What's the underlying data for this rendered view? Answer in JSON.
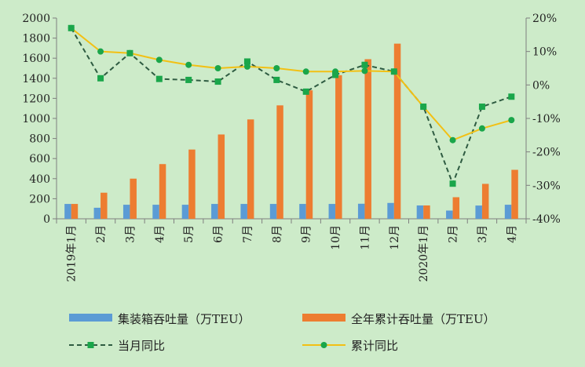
{
  "chart_data": {
    "type": "bar",
    "categories": [
      "2019年1月",
      "2月",
      "3月",
      "4月",
      "5月",
      "6月",
      "7月",
      "8月",
      "9月",
      "10月",
      "11月",
      "12月",
      "2020年1月",
      "2月",
      "3月",
      "4月"
    ],
    "series": [
      {
        "name": "集装箱吞吐量（万TEU）",
        "type": "bar",
        "axis": "left",
        "color": "#5b9bd5",
        "values": [
          148,
          110,
          140,
          140,
          140,
          148,
          148,
          148,
          148,
          148,
          150,
          158,
          133,
          82,
          132,
          140
        ]
      },
      {
        "name": "全年累计吞吐量（万TEU）",
        "type": "bar",
        "axis": "left",
        "color": "#ed7d31",
        "values": [
          148,
          260,
          400,
          545,
          690,
          840,
          990,
          1130,
          1280,
          1430,
          1590,
          1745,
          133,
          215,
          348,
          488
        ]
      },
      {
        "name": "当月同比",
        "type": "line",
        "axis": "right",
        "dashed": true,
        "color": "#2e5b41",
        "marker_color": "#1aa64a",
        "marker": "square",
        "values": [
          17,
          2,
          9.5,
          1.8,
          1.5,
          1,
          7,
          1.5,
          -2,
          3,
          6,
          4,
          -6.5,
          -29.5,
          -6.5,
          -3.5
        ]
      },
      {
        "name": "累计同比",
        "type": "line",
        "axis": "right",
        "dashed": false,
        "color": "#f2c014",
        "marker_color": "#1aa64a",
        "marker": "circle",
        "values": [
          17,
          10,
          9.5,
          7.5,
          6,
          5,
          5.5,
          5,
          4,
          4,
          4.2,
          4,
          -6.5,
          -16.5,
          -13,
          -10.5
        ]
      }
    ],
    "y_left": {
      "min": 0,
      "max": 2000,
      "step": 200,
      "tick_labels": [
        "0",
        "200",
        "400",
        "600",
        "800",
        "1000",
        "1200",
        "1400",
        "1600",
        "1800",
        "2000"
      ]
    },
    "y_right": {
      "min": -40,
      "max": 20,
      "step": 10,
      "tick_labels": [
        "-40%",
        "-30%",
        "-20%",
        "-10%",
        "0%",
        "10%",
        "20%"
      ]
    },
    "legend_position": "bottom",
    "grid": false
  }
}
